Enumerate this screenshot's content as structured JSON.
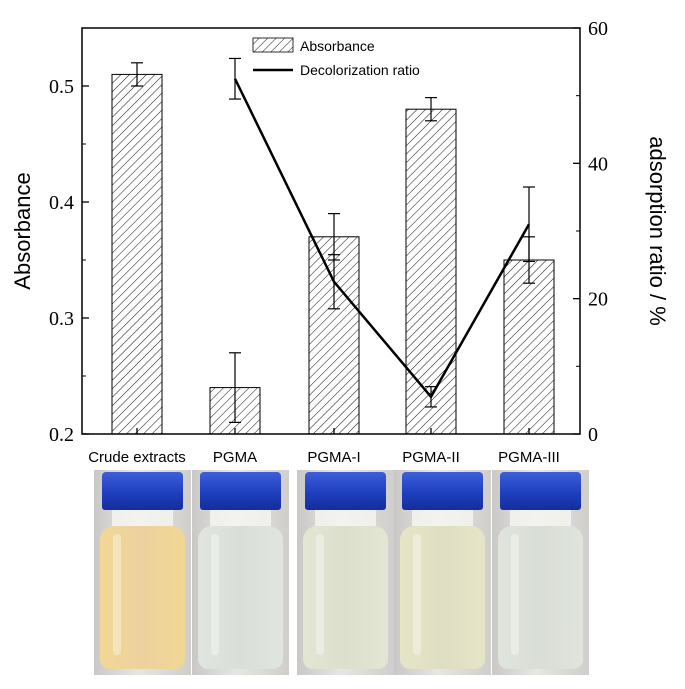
{
  "chart_data": {
    "type": "bar",
    "categories": [
      "Crude extracts",
      "PGMA",
      "PGMA-I",
      "PGMA-II",
      "PGMA-III"
    ],
    "series": [
      {
        "name": "Absorbance",
        "type": "bar",
        "axis": "left",
        "values": [
          0.51,
          0.24,
          0.37,
          0.48,
          0.35
        ],
        "errors": [
          0.01,
          0.03,
          0.02,
          0.01,
          0.02
        ]
      },
      {
        "name": "Decolorization ratio",
        "type": "line",
        "axis": "right",
        "values": [
          null,
          52.5,
          22.5,
          5.5,
          31.0
        ],
        "errors": [
          null,
          3.0,
          4.0,
          1.5,
          5.5
        ]
      }
    ],
    "ylabel": "Absorbance",
    "ylabel_right": "adsorption ratio / %",
    "xlabel": "",
    "ylim": [
      0.2,
      0.55
    ],
    "ylim_right": [
      0,
      60
    ],
    "yticks": [
      "0.2",
      "0.3",
      "0.4",
      "0.5"
    ],
    "yticks_right": [
      "0",
      "20",
      "40",
      "60"
    ],
    "legend_position": "top-center",
    "grid": false,
    "colors": {
      "bar_hatch": "#222222",
      "line": "#000000"
    }
  },
  "photos": [
    {
      "label": "Crude extracts",
      "liquid": "#e9c98f"
    },
    {
      "label": "PGMA",
      "liquid": "#d3d8d2"
    },
    {
      "label": "PGMA-I",
      "liquid": "#d6d9c4"
    },
    {
      "label": "PGMA-II",
      "liquid": "#d9d8b8"
    },
    {
      "label": "PGMA-III",
      "liquid": "#d2d7cf"
    }
  ]
}
